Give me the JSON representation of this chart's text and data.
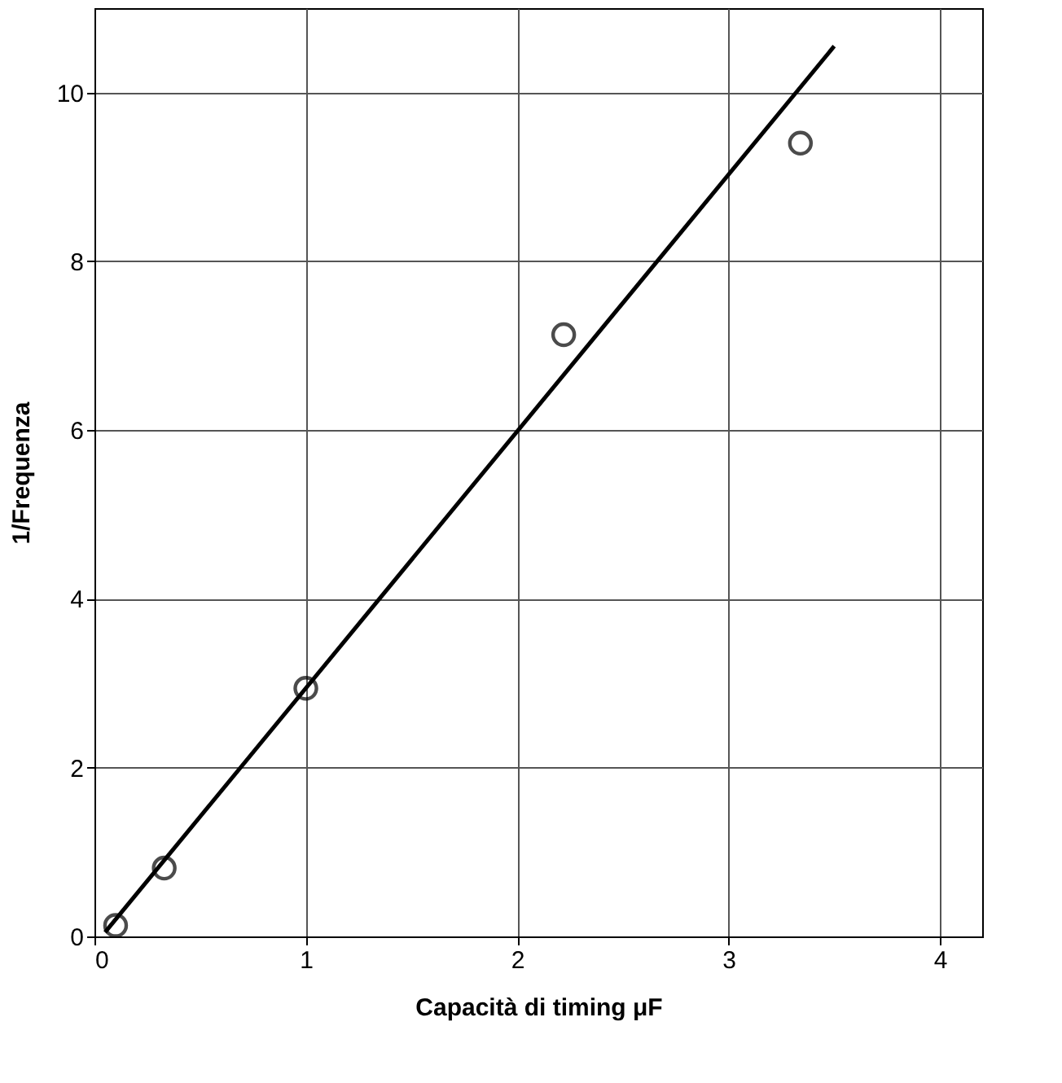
{
  "chart_data": {
    "type": "scatter",
    "xlabel": "Capacità di timing μF",
    "ylabel": "1/Frequenza",
    "xlim": [
      0,
      4.2
    ],
    "ylim": [
      0,
      11
    ],
    "xticks": [
      0,
      1,
      2,
      3,
      4
    ],
    "yticks": [
      0,
      2,
      4,
      6,
      8,
      10
    ],
    "grid": true,
    "marker": "circle",
    "series": [
      {
        "color": "#000000",
        "x": [
          0.1,
          0.33,
          1.0,
          2.22,
          3.34
        ],
        "values": [
          0.13,
          0.81,
          2.94,
          7.13,
          9.4
        ]
      },
      {
        "type": "line",
        "color": "#000000",
        "x": [
          0.05,
          3.5
        ],
        "values": [
          0.05,
          10.55
        ],
        "marker": "none",
        "line_style": "solid"
      }
    ]
  }
}
